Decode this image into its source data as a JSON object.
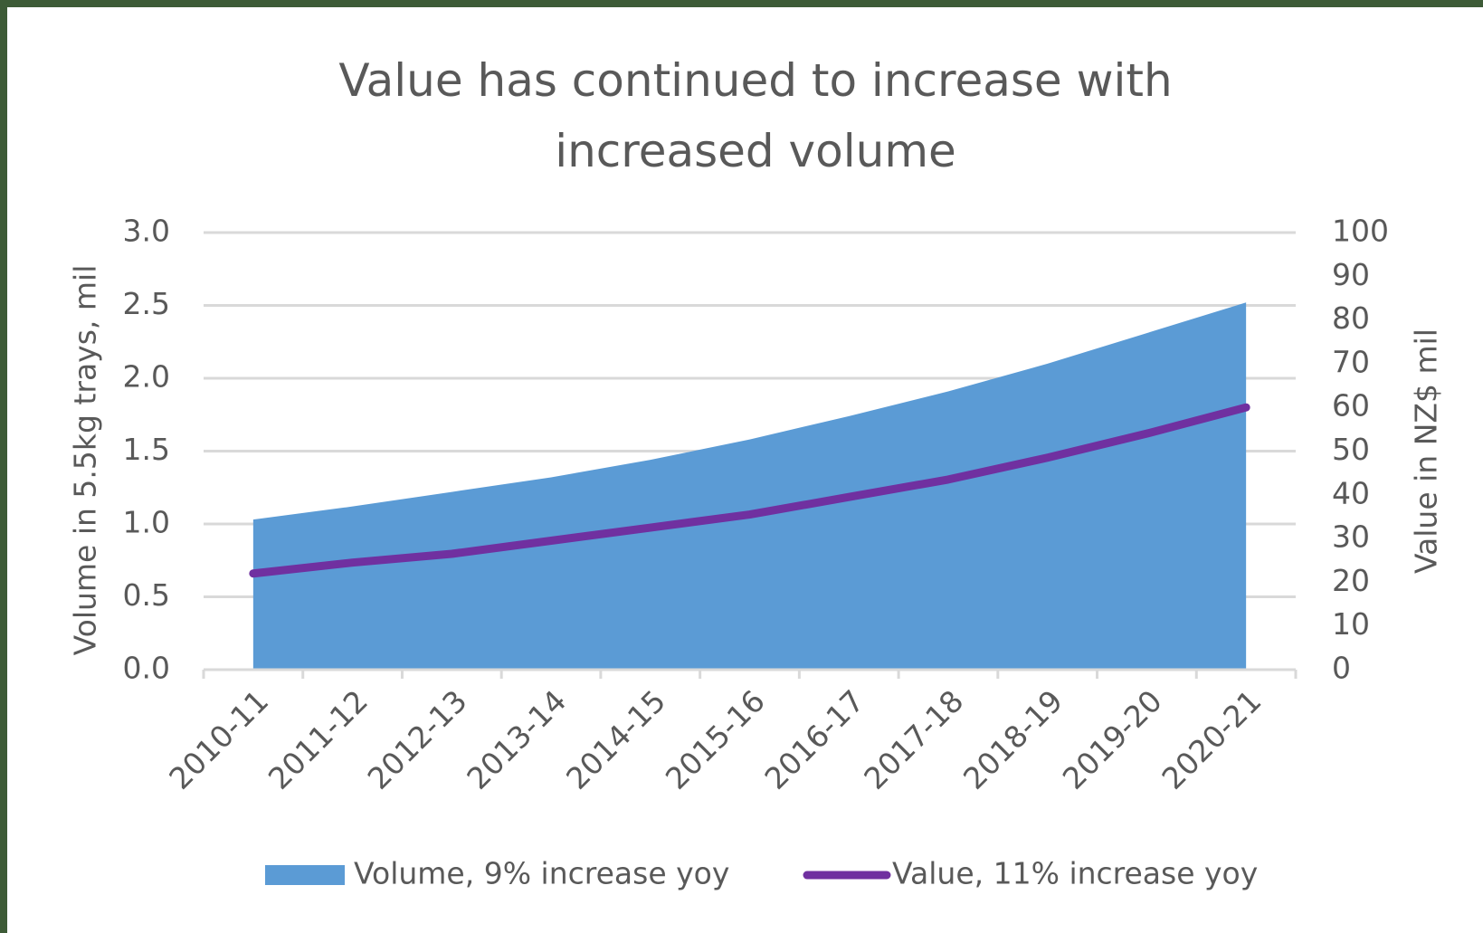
{
  "chart_data": {
    "type": "area-line",
    "title": "Value has continued to increase with increased volume",
    "categories": [
      "2010-11",
      "2011-12",
      "2012-13",
      "2013-14",
      "2014-15",
      "2015-16",
      "2016-17",
      "2017-18",
      "2018-19",
      "2019-20",
      "2020-21"
    ],
    "series": [
      {
        "name": "Volume, 9% increase yoy",
        "type": "area",
        "color": "#5b9bd5",
        "axis": "y",
        "values": [
          1.03,
          1.12,
          1.22,
          1.32,
          1.44,
          1.58,
          1.74,
          1.91,
          2.1,
          2.31,
          2.52
        ]
      },
      {
        "name": "Value, 11% increase yoy",
        "type": "line",
        "color": "#7030a0",
        "axis": "y2",
        "values": [
          22,
          24.5,
          26.5,
          29.5,
          32.5,
          35.5,
          39.5,
          43.5,
          48.5,
          54,
          60
        ]
      }
    ],
    "ylabel": "Volume in 5.5kg trays, mil",
    "y2label": "Value in NZ$ mil",
    "ylim": [
      0,
      3
    ],
    "yticks": [
      {
        "value": 0,
        "label": "0.0"
      },
      0.5,
      {
        "value": 1,
        "label": "1.0"
      },
      1.5,
      {
        "value": 2,
        "label": "2.0"
      },
      2.5,
      {
        "value": 3,
        "label": "3.0"
      }
    ],
    "y2lim": [
      0,
      100
    ],
    "y2ticks": [
      0,
      10,
      20,
      30,
      40,
      50,
      60,
      70,
      80,
      90,
      100
    ],
    "grid": true,
    "legend": "bottom"
  }
}
